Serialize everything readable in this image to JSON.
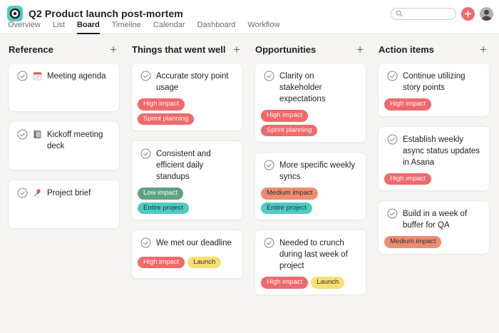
{
  "header": {
    "title": "Q2 Product launch post-mortem",
    "logo_icon": "target-logo",
    "search": {
      "value": ""
    },
    "tabs": [
      {
        "label": "Overview",
        "active": false
      },
      {
        "label": "List",
        "active": false
      },
      {
        "label": "Board",
        "active": true
      },
      {
        "label": "Timeline",
        "active": false
      },
      {
        "label": "Calendar",
        "active": false
      },
      {
        "label": "Dashboard",
        "active": false
      },
      {
        "label": "Workflow",
        "active": false
      }
    ]
  },
  "board": {
    "columns": [
      {
        "title": "Reference",
        "add_label": "+",
        "cards": [
          {
            "icon": "calendar",
            "text": "Meeting agenda",
            "tags": []
          },
          {
            "icon": "notebook",
            "text": "Kickoff meeting deck",
            "tags": []
          },
          {
            "icon": "pushpin",
            "text": "Project brief",
            "tags": []
          }
        ]
      },
      {
        "title": "Things that went well",
        "add_label": "+",
        "cards": [
          {
            "text": "Accurate story point usage",
            "tags": [
              {
                "label": "High impact",
                "color": "coral"
              },
              {
                "label": "Sprint planning",
                "color": "coral"
              }
            ]
          },
          {
            "text": "Consistent and efficient daily standups",
            "tags": [
              {
                "label": "Low impact",
                "color": "green"
              },
              {
                "label": "Entire project",
                "color": "teal"
              }
            ]
          },
          {
            "text": "We met our deadline",
            "tags": [
              {
                "label": "High impact",
                "color": "coral"
              },
              {
                "label": "Launch",
                "color": "yellow"
              }
            ]
          }
        ]
      },
      {
        "title": "Opportunities",
        "add_label": "+",
        "cards": [
          {
            "text": "Clarity on stakeholder expectations",
            "tags": [
              {
                "label": "High impact",
                "color": "coral"
              },
              {
                "label": "Sprint planning",
                "color": "coral"
              }
            ]
          },
          {
            "text": "More specific weekly syncs",
            "tags": [
              {
                "label": "Medium impact",
                "color": "salmon"
              },
              {
                "label": "Entire project",
                "color": "teal"
              }
            ]
          },
          {
            "text": "Needed to crunch during last week of project",
            "tags": [
              {
                "label": "High impact",
                "color": "coral"
              },
              {
                "label": "Launch",
                "color": "yellow"
              }
            ]
          }
        ]
      },
      {
        "title": "Action items",
        "add_label": "+",
        "cards": [
          {
            "text": "Continue utilizing story points",
            "tags": [
              {
                "label": "High impact",
                "color": "coral"
              }
            ]
          },
          {
            "text": "Establish weekly async status updates in Asana",
            "tags": [
              {
                "label": "High impact",
                "color": "coral"
              }
            ]
          },
          {
            "text": "Build in a week of buffer for QA",
            "tags": [
              {
                "label": "Medium impact",
                "color": "salmon"
              }
            ]
          }
        ]
      }
    ]
  },
  "colors": {
    "coral": "#f0696b",
    "green": "#5da283",
    "teal": "#4ecbc4",
    "yellow": "#f8df72",
    "salmon": "#ec8d71",
    "logo_bg": "#4ecbc4",
    "create_button": "#f06a6a",
    "tab_active_text": "#1e1f21",
    "tab_inactive_text": "#6d6e6f"
  }
}
